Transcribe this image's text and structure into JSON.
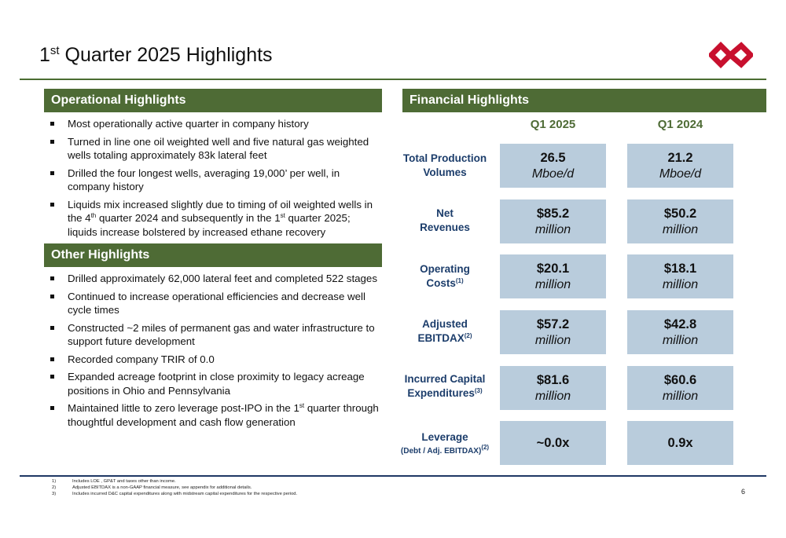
{
  "title": {
    "prefix": "1",
    "sup": "st",
    "rest": " Quarter 2025 Highlights"
  },
  "colors": {
    "green": "#4e6b35",
    "navy": "#1c3d6b",
    "box": "#b9ccdc",
    "logo": "#c8102e"
  },
  "logo_icon": "red-infinity-diamond-logo",
  "operational": {
    "header": "Operational Highlights",
    "items": [
      {
        "text": "Most operationally active quarter in company history"
      },
      {
        "text": "Turned in line one oil weighted well and five natural gas weighted wells totaling approximately 83k lateral feet"
      },
      {
        "text": "Drilled the four longest wells, averaging 19,000’ per well, in company history"
      },
      {
        "a": "Liquids mix increased slightly due to timing of oil weighted wells in the 4",
        "s1": "th",
        "b": " quarter 2024 and subsequently in the 1",
        "s2": "st",
        "c": " quarter 2025; liquids increase bolstered by increased ethane recovery"
      }
    ]
  },
  "other": {
    "header": "Other Highlights",
    "items": [
      {
        "text": "Drilled approximately 62,000 lateral feet and completed 522 stages"
      },
      {
        "text": "Continued to increase operational efficiencies and decrease well cycle times"
      },
      {
        "text": "Constructed ~2 miles of permanent gas and water infrastructure to support future development"
      },
      {
        "text": "Recorded company TRIR of 0.0"
      },
      {
        "text": "Expanded acreage footprint in close proximity to legacy acreage positions in Ohio and Pennsylvania"
      },
      {
        "a": "Maintained little to zero leverage post-IPO in the 1",
        "s1": "st",
        "b": " quarter through thoughtful development and cash flow generation"
      }
    ]
  },
  "financial": {
    "header": "Financial Highlights",
    "columns": [
      "Q1 2025",
      "Q1 2024"
    ],
    "rows": [
      {
        "label1": "Total Production",
        "label2": "Volumes",
        "sup": "",
        "q1_2025": {
          "value": "26.5",
          "unit": "Mboe/d"
        },
        "q1_2024": {
          "value": "21.2",
          "unit": "Mboe/d"
        }
      },
      {
        "label1": "Net",
        "label2": "Revenues",
        "sup": "",
        "q1_2025": {
          "value": "$85.2",
          "unit": "million"
        },
        "q1_2024": {
          "value": "$50.2",
          "unit": "million"
        }
      },
      {
        "label1": "Operating",
        "label2": "Costs",
        "sup": "(1)",
        "q1_2025": {
          "value": "$20.1",
          "unit": "million"
        },
        "q1_2024": {
          "value": "$18.1",
          "unit": "million"
        }
      },
      {
        "label1": "Adjusted",
        "label2": "EBITDAX",
        "sup": "(2)",
        "q1_2025": {
          "value": "$57.2",
          "unit": "million"
        },
        "q1_2024": {
          "value": "$42.8",
          "unit": "million"
        }
      },
      {
        "label1": "Incurred Capital",
        "label2": "Expenditures",
        "sup": "(3)",
        "q1_2025": {
          "value": "$81.6",
          "unit": "million"
        },
        "q1_2024": {
          "value": "$60.6",
          "unit": "million"
        }
      },
      {
        "label1": "Leverage",
        "label2": "(Debt / Adj. EBITDAX)",
        "sup": "(2)",
        "q1_2025": {
          "value": "~0.0x",
          "unit": ""
        },
        "q1_2024": {
          "value": "0.9x",
          "unit": ""
        }
      }
    ]
  },
  "footnotes": [
    {
      "num": "1)",
      "text": "Includes LOE , GP&T and taxes other than income."
    },
    {
      "num": "2)",
      "text": "Adjusted EBITDAX is a non-GAAP financial measure, see appendix for additional details."
    },
    {
      "num": "3)",
      "text": "Includes incurred D&C capital expenditures along with midstream capital expenditures for the respective period."
    }
  ],
  "page_number": "6"
}
